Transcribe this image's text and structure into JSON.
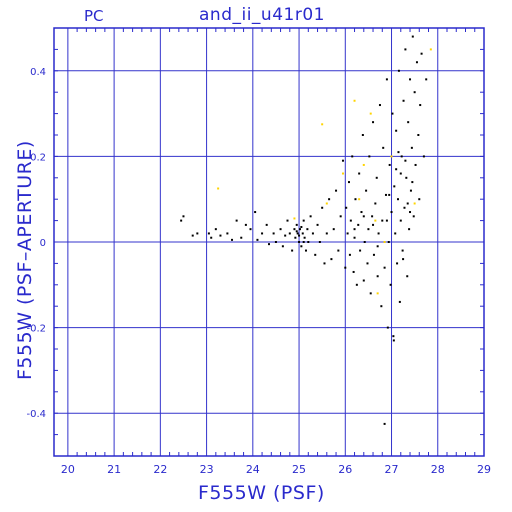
{
  "header": {
    "left_label": "PC",
    "center_label": "and_ii_u41r01"
  },
  "colors": {
    "axis": "#2a2acc",
    "grid": "#3333cc",
    "points_primary": "#000000",
    "points_secondary": "#ffd400"
  },
  "chart_data": {
    "type": "scatter",
    "title": "and_ii_u41r01",
    "subtitle": "PC",
    "xlabel": "F555W (PSF)",
    "ylabel": "F555W (PSF–APERTURE)",
    "xlim": [
      19.7,
      29.0
    ],
    "ylim": [
      -0.5,
      0.5
    ],
    "x_ticks": [
      20,
      21,
      22,
      23,
      24,
      25,
      26,
      27,
      28,
      29
    ],
    "y_ticks": [
      -0.4,
      -0.2,
      0,
      0.2,
      0.4
    ],
    "y_tick_labels": [
      "-0.4",
      "-0.2",
      "0",
      "0.2",
      "0.4"
    ],
    "grid": true,
    "series": [
      {
        "color": "#000000",
        "points": [
          [
            22.45,
            0.05
          ],
          [
            22.5,
            0.06
          ],
          [
            22.7,
            0.015
          ],
          [
            22.8,
            0.02
          ],
          [
            23.05,
            0.02
          ],
          [
            23.1,
            0.01
          ],
          [
            23.2,
            0.03
          ],
          [
            23.3,
            0.015
          ],
          [
            23.45,
            0.02
          ],
          [
            23.55,
            0.005
          ],
          [
            23.65,
            0.05
          ],
          [
            23.75,
            0.01
          ],
          [
            23.85,
            0.04
          ],
          [
            23.95,
            0.03
          ],
          [
            24.05,
            0.07
          ],
          [
            24.1,
            0.005
          ],
          [
            24.2,
            0.02
          ],
          [
            24.3,
            0.04
          ],
          [
            24.35,
            -0.005
          ],
          [
            24.45,
            0.02
          ],
          [
            24.5,
            0.0
          ],
          [
            24.6,
            0.03
          ],
          [
            24.65,
            -0.01
          ],
          [
            24.7,
            0.015
          ],
          [
            24.75,
            0.05
          ],
          [
            24.8,
            0.02
          ],
          [
            24.85,
            -0.02
          ],
          [
            24.9,
            0.03
          ],
          [
            24.92,
            0.01
          ],
          [
            24.95,
            0.04
          ],
          [
            24.97,
            0.02
          ],
          [
            25.0,
            0.0
          ],
          [
            25.02,
            0.03
          ],
          [
            25.05,
            -0.01
          ],
          [
            25.08,
            0.02
          ],
          [
            25.1,
            0.05
          ],
          [
            25.12,
            0.01
          ],
          [
            25.15,
            -0.02
          ],
          [
            25.18,
            0.03
          ],
          [
            25.2,
            0.0
          ],
          [
            25.25,
            0.06
          ],
          [
            25.3,
            0.02
          ],
          [
            25.35,
            -0.03
          ],
          [
            25.4,
            0.04
          ],
          [
            25.45,
            0.0
          ],
          [
            25.5,
            0.08
          ],
          [
            25.55,
            -0.05
          ],
          [
            25.6,
            0.02
          ],
          [
            25.65,
            0.1
          ],
          [
            25.7,
            -0.04
          ],
          [
            25.75,
            0.03
          ],
          [
            25.8,
            0.12
          ],
          [
            25.85,
            -0.02
          ],
          [
            25.9,
            0.06
          ],
          [
            25.95,
            0.19
          ],
          [
            26.0,
            -0.06
          ],
          [
            26.02,
            0.08
          ],
          [
            26.05,
            0.02
          ],
          [
            26.08,
            0.14
          ],
          [
            26.1,
            -0.03
          ],
          [
            26.12,
            0.05
          ],
          [
            26.15,
            0.2
          ],
          [
            26.18,
            -0.07
          ],
          [
            26.2,
            0.01
          ],
          [
            26.22,
            0.1
          ],
          [
            26.25,
            -0.1
          ],
          [
            26.28,
            0.04
          ],
          [
            26.3,
            0.16
          ],
          [
            26.32,
            -0.02
          ],
          [
            26.35,
            0.07
          ],
          [
            26.38,
            0.25
          ],
          [
            26.4,
            -0.09
          ],
          [
            26.42,
            0.0
          ],
          [
            26.45,
            0.12
          ],
          [
            26.48,
            -0.05
          ],
          [
            26.5,
            0.03
          ],
          [
            26.52,
            0.2
          ],
          [
            26.55,
            -0.12
          ],
          [
            26.58,
            0.06
          ],
          [
            26.6,
            0.28
          ],
          [
            26.62,
            -0.03
          ],
          [
            26.65,
            0.09
          ],
          [
            26.68,
            0.15
          ],
          [
            26.7,
            -0.08
          ],
          [
            26.72,
            0.02
          ],
          [
            26.75,
            0.32
          ],
          [
            26.78,
            -0.15
          ],
          [
            26.8,
            0.05
          ],
          [
            26.82,
            0.22
          ],
          [
            26.85,
            -0.06
          ],
          [
            26.88,
            0.11
          ],
          [
            26.9,
            0.38
          ],
          [
            26.92,
            -0.2
          ],
          [
            26.94,
            0.0
          ],
          [
            26.96,
            0.18
          ],
          [
            26.98,
            -0.1
          ],
          [
            27.0,
            0.07
          ],
          [
            27.02,
            0.3
          ],
          [
            27.04,
            -0.22
          ],
          [
            27.06,
            0.13
          ],
          [
            27.08,
            0.02
          ],
          [
            27.1,
            0.26
          ],
          [
            27.12,
            -0.05
          ],
          [
            27.14,
            0.1
          ],
          [
            27.16,
            0.4
          ],
          [
            27.18,
            -0.14
          ],
          [
            27.2,
            0.05
          ],
          [
            27.22,
            0.2
          ],
          [
            27.24,
            -0.02
          ],
          [
            27.26,
            0.33
          ],
          [
            27.28,
            0.08
          ],
          [
            27.3,
            0.45
          ],
          [
            27.32,
            0.15
          ],
          [
            27.34,
            -0.08
          ],
          [
            27.36,
            0.28
          ],
          [
            27.38,
            0.03
          ],
          [
            27.4,
            0.38
          ],
          [
            27.42,
            0.12
          ],
          [
            27.44,
            0.22
          ],
          [
            27.46,
            0.48
          ],
          [
            27.48,
            0.06
          ],
          [
            27.5,
            0.35
          ],
          [
            27.52,
            0.18
          ],
          [
            27.55,
            0.42
          ],
          [
            27.58,
            0.25
          ],
          [
            27.6,
            0.1
          ],
          [
            27.62,
            0.32
          ],
          [
            27.65,
            0.44
          ],
          [
            27.7,
            0.2
          ],
          [
            27.75,
            0.38
          ],
          [
            26.85,
            -0.425
          ],
          [
            27.05,
            -0.23
          ],
          [
            25.0,
            0.015
          ],
          [
            24.95,
            0.025
          ],
          [
            25.05,
            0.035
          ],
          [
            25.1,
            0.0
          ],
          [
            27.2,
            0.16
          ],
          [
            27.3,
            0.19
          ],
          [
            27.15,
            0.21
          ],
          [
            27.35,
            0.09
          ],
          [
            26.6,
            0.04
          ],
          [
            26.4,
            0.06
          ],
          [
            26.2,
            0.03
          ],
          [
            26.7,
            -0.01
          ],
          [
            26.9,
            0.05
          ],
          [
            27.25,
            -0.04
          ],
          [
            27.45,
            0.14
          ],
          [
            27.1,
            0.17
          ],
          [
            26.95,
            0.11
          ],
          [
            27.4,
            0.07
          ]
        ]
      },
      {
        "color": "#ffd400",
        "points": [
          [
            23.25,
            0.125
          ],
          [
            25.5,
            0.275
          ],
          [
            25.6,
            0.09
          ],
          [
            25.95,
            0.16
          ],
          [
            26.3,
            0.1
          ],
          [
            26.4,
            0.18
          ],
          [
            26.55,
            0.3
          ],
          [
            26.65,
            0.05
          ],
          [
            26.7,
            -0.12
          ],
          [
            27.0,
            0.2
          ],
          [
            27.85,
            0.45
          ],
          [
            26.2,
            0.33
          ],
          [
            24.9,
            0.055
          ],
          [
            26.85,
            0.0
          ],
          [
            27.5,
            0.09
          ]
        ]
      }
    ]
  }
}
